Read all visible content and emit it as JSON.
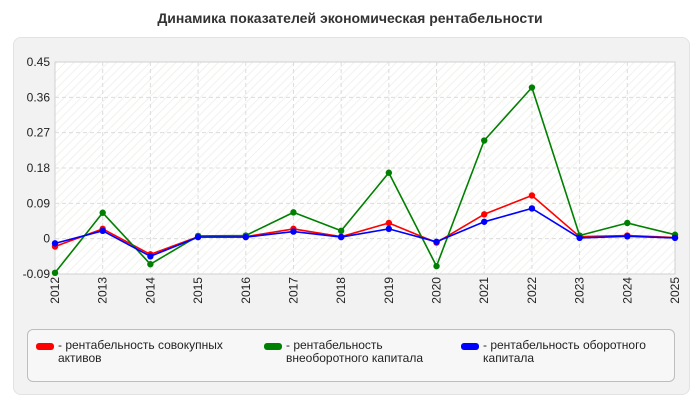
{
  "chart_data": {
    "type": "line",
    "title": "Динамика показателей экономическая рентабельности",
    "categories": [
      "2012",
      "2013",
      "2014",
      "2015",
      "2016",
      "2017",
      "2018",
      "2019",
      "2020",
      "2021",
      "2022",
      "2023",
      "2024",
      "2025"
    ],
    "ylim": [
      -0.09,
      0.45
    ],
    "yticks": [
      "0.45",
      "0.36",
      "0.27",
      "0.18",
      "0.09",
      "0",
      "-0.09"
    ],
    "grid": true,
    "legend_position": "bottom",
    "series": [
      {
        "name": "- рентабельность совокупных активов",
        "color": "#ff0000",
        "values": [
          -0.02,
          0.025,
          -0.04,
          0.005,
          0.005,
          0.025,
          0.005,
          0.04,
          -0.01,
          0.062,
          0.11,
          0.005,
          0.008,
          0.003
        ]
      },
      {
        "name": "- рентабельность внеоборотного капитала",
        "color": "#008000",
        "values": [
          -0.087,
          0.066,
          -0.065,
          0.007,
          0.008,
          0.067,
          0.02,
          0.168,
          -0.07,
          0.25,
          0.385,
          0.008,
          0.04,
          0.01
        ]
      },
      {
        "name": "- рентабельность оборотного капитала",
        "color": "#0000ff",
        "values": [
          -0.012,
          0.02,
          -0.045,
          0.004,
          0.004,
          0.018,
          0.004,
          0.025,
          -0.008,
          0.043,
          0.077,
          0.002,
          0.006,
          0.002
        ]
      }
    ]
  }
}
